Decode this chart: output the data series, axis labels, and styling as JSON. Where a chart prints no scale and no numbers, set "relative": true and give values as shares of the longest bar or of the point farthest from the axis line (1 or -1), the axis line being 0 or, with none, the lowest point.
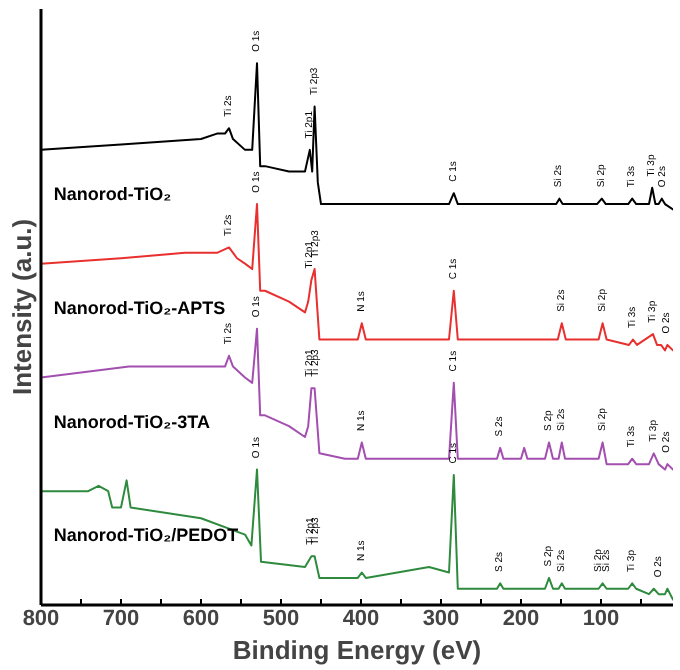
{
  "chart_data": {
    "type": "line",
    "relative": true,
    "xlabel": "Binding Energy (eV)",
    "ylabel": "Intensity (a.u.)",
    "xlim": [
      800,
      10
    ],
    "xticks": [
      800,
      {
        "value": 750,
        "label": null
      },
      700,
      {
        "value": 650,
        "label": null
      },
      600,
      {
        "value": 550,
        "label": null
      },
      500,
      {
        "value": 450,
        "label": null
      },
      400,
      {
        "value": 350,
        "label": null
      },
      300,
      {
        "value": 250,
        "label": null
      },
      200,
      {
        "value": 150,
        "label": null
      },
      100,
      {
        "value": 50,
        "label": null
      }
    ],
    "legend": false,
    "grid": false,
    "marker": "none",
    "line_style": "solid",
    "series": [
      {
        "name": "Nanorod-TiO₂",
        "color": "#000000",
        "x": [
          800,
          700,
          600,
          580,
          570,
          565,
          560,
          545,
          536,
          530,
          526,
          520,
          490,
          470,
          464,
          461,
          458,
          454,
          450,
          400,
          300,
          290,
          284,
          279,
          200,
          156,
          152,
          148,
          105,
          99,
          94,
          66,
          61,
          56,
          40,
          36,
          32,
          28,
          24,
          20,
          10
        ],
        "values": [
          0.84,
          0.85,
          0.86,
          0.87,
          0.87,
          0.88,
          0.86,
          0.84,
          0.84,
          1.0,
          0.81,
          0.81,
          0.8,
          0.8,
          0.84,
          0.8,
          0.92,
          0.78,
          0.74,
          0.74,
          0.74,
          0.74,
          0.76,
          0.74,
          0.74,
          0.74,
          0.75,
          0.74,
          0.74,
          0.75,
          0.74,
          0.74,
          0.75,
          0.74,
          0.74,
          0.77,
          0.74,
          0.74,
          0.75,
          0.74,
          0.73
        ]
      },
      {
        "name": "Nanorod-TiO₂-APTS",
        "color": "#e8312f",
        "x": [
          800,
          700,
          620,
          580,
          565,
          555,
          545,
          536,
          530,
          526,
          520,
          490,
          470,
          466,
          462,
          458,
          452,
          420,
          404,
          399,
          394,
          300,
          290,
          284,
          279,
          200,
          154,
          149,
          144,
          103,
          98,
          93,
          65,
          60,
          55,
          35,
          30,
          25,
          20,
          17,
          10
        ],
        "values": [
          0.63,
          0.64,
          0.65,
          0.65,
          0.66,
          0.64,
          0.63,
          0.62,
          0.74,
          0.58,
          0.58,
          0.56,
          0.54,
          0.56,
          0.6,
          0.62,
          0.49,
          0.49,
          0.49,
          0.52,
          0.49,
          0.49,
          0.49,
          0.58,
          0.49,
          0.49,
          0.49,
          0.52,
          0.49,
          0.49,
          0.52,
          0.49,
          0.48,
          0.49,
          0.48,
          0.5,
          0.48,
          0.48,
          0.47,
          0.48,
          0.47
        ]
      },
      {
        "name": "Nanorod-TiO₂-3TA",
        "color": "#a34fb0",
        "x": [
          800,
          690,
          600,
          570,
          565,
          560,
          545,
          536,
          530,
          526,
          520,
          490,
          470,
          466,
          462,
          458,
          452,
          420,
          404,
          399,
          394,
          300,
          290,
          284,
          279,
          240,
          230,
          226,
          222,
          200,
          196,
          192,
          170,
          165,
          160,
          153,
          149,
          145,
          103,
          98,
          93,
          66,
          61,
          56,
          40,
          34,
          28,
          20,
          17,
          10
        ],
        "values": [
          0.42,
          0.44,
          0.44,
          0.44,
          0.46,
          0.44,
          0.42,
          0.41,
          0.51,
          0.35,
          0.35,
          0.33,
          0.31,
          0.33,
          0.4,
          0.4,
          0.28,
          0.27,
          0.27,
          0.3,
          0.27,
          0.27,
          0.27,
          0.41,
          0.27,
          0.27,
          0.27,
          0.29,
          0.27,
          0.27,
          0.29,
          0.27,
          0.27,
          0.3,
          0.27,
          0.27,
          0.3,
          0.27,
          0.27,
          0.3,
          0.26,
          0.26,
          0.27,
          0.26,
          0.26,
          0.28,
          0.26,
          0.25,
          0.26,
          0.25
        ]
      },
      {
        "name": "Nanorod-TiO₂/PEDOT",
        "color": "#2e8b3e",
        "x": [
          800,
          741,
          728,
          716,
          711,
          700,
          693,
          688,
          600,
          545,
          537,
          530,
          525,
          470,
          462,
          458,
          452,
          420,
          404,
          399,
          394,
          315,
          290,
          284,
          279,
          240,
          230,
          226,
          222,
          170,
          165,
          160,
          153,
          149,
          145,
          103,
          98,
          93,
          66,
          61,
          56,
          40,
          34,
          28,
          20,
          17,
          10
        ],
        "values": [
          0.21,
          0.21,
          0.22,
          0.21,
          0.18,
          0.18,
          0.23,
          0.18,
          0.16,
          0.13,
          0.11,
          0.25,
          0.08,
          0.07,
          0.09,
          0.09,
          0.05,
          0.05,
          0.05,
          0.06,
          0.05,
          0.07,
          0.06,
          0.24,
          0.03,
          0.03,
          0.03,
          0.04,
          0.03,
          0.03,
          0.05,
          0.03,
          0.03,
          0.04,
          0.03,
          0.03,
          0.04,
          0.03,
          0.03,
          0.04,
          0.03,
          0.02,
          0.03,
          0.02,
          0.02,
          0.03,
          0.01
        ]
      }
    ],
    "annotations": [
      {
        "text": "Ti 2s",
        "x": 565,
        "y": 0.89
      },
      {
        "text": "O 1s",
        "x": 530,
        "y": 1.01
      },
      {
        "text": "Ti 2p1",
        "x": 464,
        "y": 0.85
      },
      {
        "text": "Ti 2p3",
        "x": 458,
        "y": 0.93
      },
      {
        "text": "C 1s",
        "x": 284,
        "y": 0.77
      },
      {
        "text": "Si 2s",
        "x": 152,
        "y": 0.76
      },
      {
        "text": "Si 2p",
        "x": 99,
        "y": 0.76
      },
      {
        "text": "Ti 3s",
        "x": 61,
        "y": 0.76
      },
      {
        "text": "Ti 3p",
        "x": 36,
        "y": 0.78
      },
      {
        "text": "O 2s",
        "x": 22,
        "y": 0.76
      },
      {
        "text": "Ti 2s",
        "x": 565,
        "y": 0.67
      },
      {
        "text": "O 1s",
        "x": 530,
        "y": 0.75
      },
      {
        "text": "Ti 2p1",
        "x": 464,
        "y": 0.61
      },
      {
        "text": "Ti 2p3",
        "x": 456,
        "y": 0.63
      },
      {
        "text": "N 1s",
        "x": 399,
        "y": 0.53
      },
      {
        "text": "C 1s",
        "x": 284,
        "y": 0.59
      },
      {
        "text": "Si 2s",
        "x": 149,
        "y": 0.53
      },
      {
        "text": "Si 2p",
        "x": 98,
        "y": 0.53
      },
      {
        "text": "Ti 3s",
        "x": 60,
        "y": 0.5
      },
      {
        "text": "Ti 3p",
        "x": 35,
        "y": 0.51
      },
      {
        "text": "O 2s",
        "x": 17,
        "y": 0.49
      },
      {
        "text": "Ti 2s",
        "x": 565,
        "y": 0.47
      },
      {
        "text": "O 1s",
        "x": 530,
        "y": 0.52
      },
      {
        "text": "Ti 2p1",
        "x": 464,
        "y": 0.41
      },
      {
        "text": "Ti 2p3",
        "x": 456,
        "y": 0.41
      },
      {
        "text": "N 1s",
        "x": 399,
        "y": 0.31
      },
      {
        "text": "C 1s",
        "x": 284,
        "y": 0.42
      },
      {
        "text": "S 2s",
        "x": 226,
        "y": 0.3
      },
      {
        "text": "S 2p",
        "x": 165,
        "y": 0.31
      },
      {
        "text": "Si 2s",
        "x": 149,
        "y": 0.31
      },
      {
        "text": "Si 2p",
        "x": 98,
        "y": 0.31
      },
      {
        "text": "Ti 3s",
        "x": 61,
        "y": 0.28
      },
      {
        "text": "Ti 3p",
        "x": 34,
        "y": 0.29
      },
      {
        "text": "O 2s",
        "x": 17,
        "y": 0.27
      },
      {
        "text": "O 1s",
        "x": 530,
        "y": 0.26
      },
      {
        "text": "Ti 2p1",
        "x": 462,
        "y": 0.1
      },
      {
        "text": "Ti 2p3",
        "x": 456,
        "y": 0.1
      },
      {
        "text": "N 1s",
        "x": 399,
        "y": 0.07
      },
      {
        "text": "C 1s",
        "x": 284,
        "y": 0.25
      },
      {
        "text": "S 2s",
        "x": 226,
        "y": 0.05
      },
      {
        "text": "S 2p",
        "x": 165,
        "y": 0.06
      },
      {
        "text": "Si 2s",
        "x": 149,
        "y": 0.05
      },
      {
        "text": "Si 2p",
        "x": 103,
        "y": 0.05
      },
      {
        "text": "Si 2s",
        "x": 93,
        "y": 0.05
      },
      {
        "text": "Ti 3p",
        "x": 61,
        "y": 0.05
      },
      {
        "text": "O 2s",
        "x": 28,
        "y": 0.04
      }
    ]
  }
}
